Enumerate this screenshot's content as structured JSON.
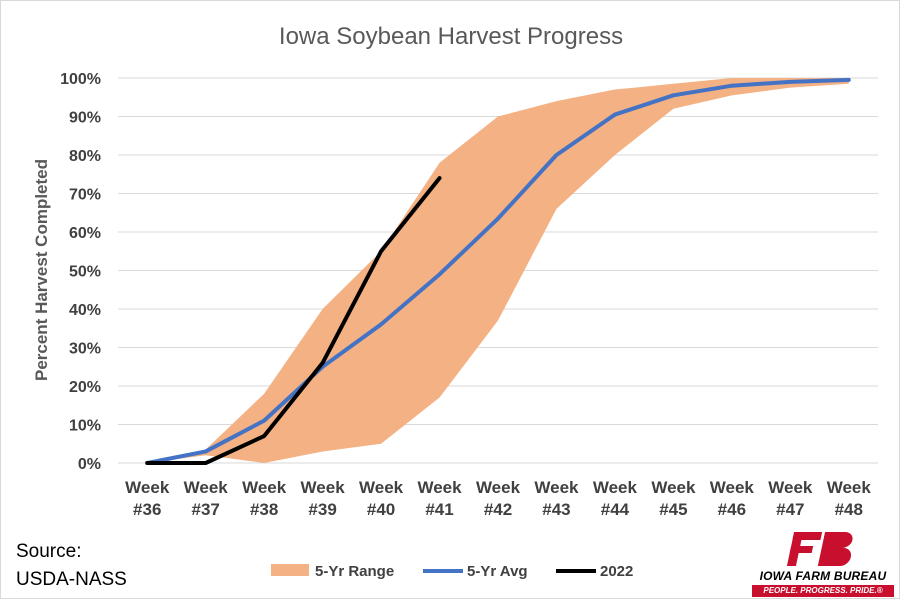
{
  "chart_data": {
    "type": "line",
    "title": "Iowa Soybean Harvest Progress",
    "ylabel": "Percent Harvest Completed",
    "xlabel": "",
    "categories": [
      "Week #36",
      "Week #37",
      "Week #38",
      "Week #39",
      "Week #40",
      "Week #41",
      "Week #42",
      "Week #43",
      "Week #44",
      "Week #45",
      "Week #46",
      "Week #47",
      "Week #48"
    ],
    "ylim": [
      0,
      100
    ],
    "yticks": [
      0,
      10,
      20,
      30,
      40,
      50,
      60,
      70,
      80,
      90,
      100
    ],
    "grid": true,
    "legend_position": "bottom",
    "range": {
      "name": "5-Yr Range",
      "color": "#f4b183",
      "low": [
        0,
        2,
        0,
        3,
        5,
        17,
        37,
        66,
        80,
        92,
        95.5,
        97.5,
        98.5
      ],
      "high": [
        0,
        3.5,
        18,
        40,
        55,
        78,
        90,
        94,
        97,
        98.5,
        100,
        100,
        100
      ]
    },
    "series": [
      {
        "name": "5-Yr Avg",
        "color": "#4472c4",
        "values": [
          0,
          3,
          11,
          25,
          36,
          49,
          63.5,
          80,
          90.5,
          95.5,
          98,
          99,
          99.5
        ]
      },
      {
        "name": "2022",
        "color": "#000000",
        "values": [
          0,
          0,
          7,
          26,
          55,
          74,
          null,
          null,
          null,
          null,
          null,
          null,
          null
        ]
      }
    ]
  },
  "source": {
    "line1": "Source:",
    "line2": "USDA-NASS"
  },
  "logo": {
    "name": "fb-logo-icon",
    "brand": "IOWA FARM BUREAU",
    "tagline": "PEOPLE. PROGRESS. PRIDE.®",
    "color": "#c8102e"
  }
}
